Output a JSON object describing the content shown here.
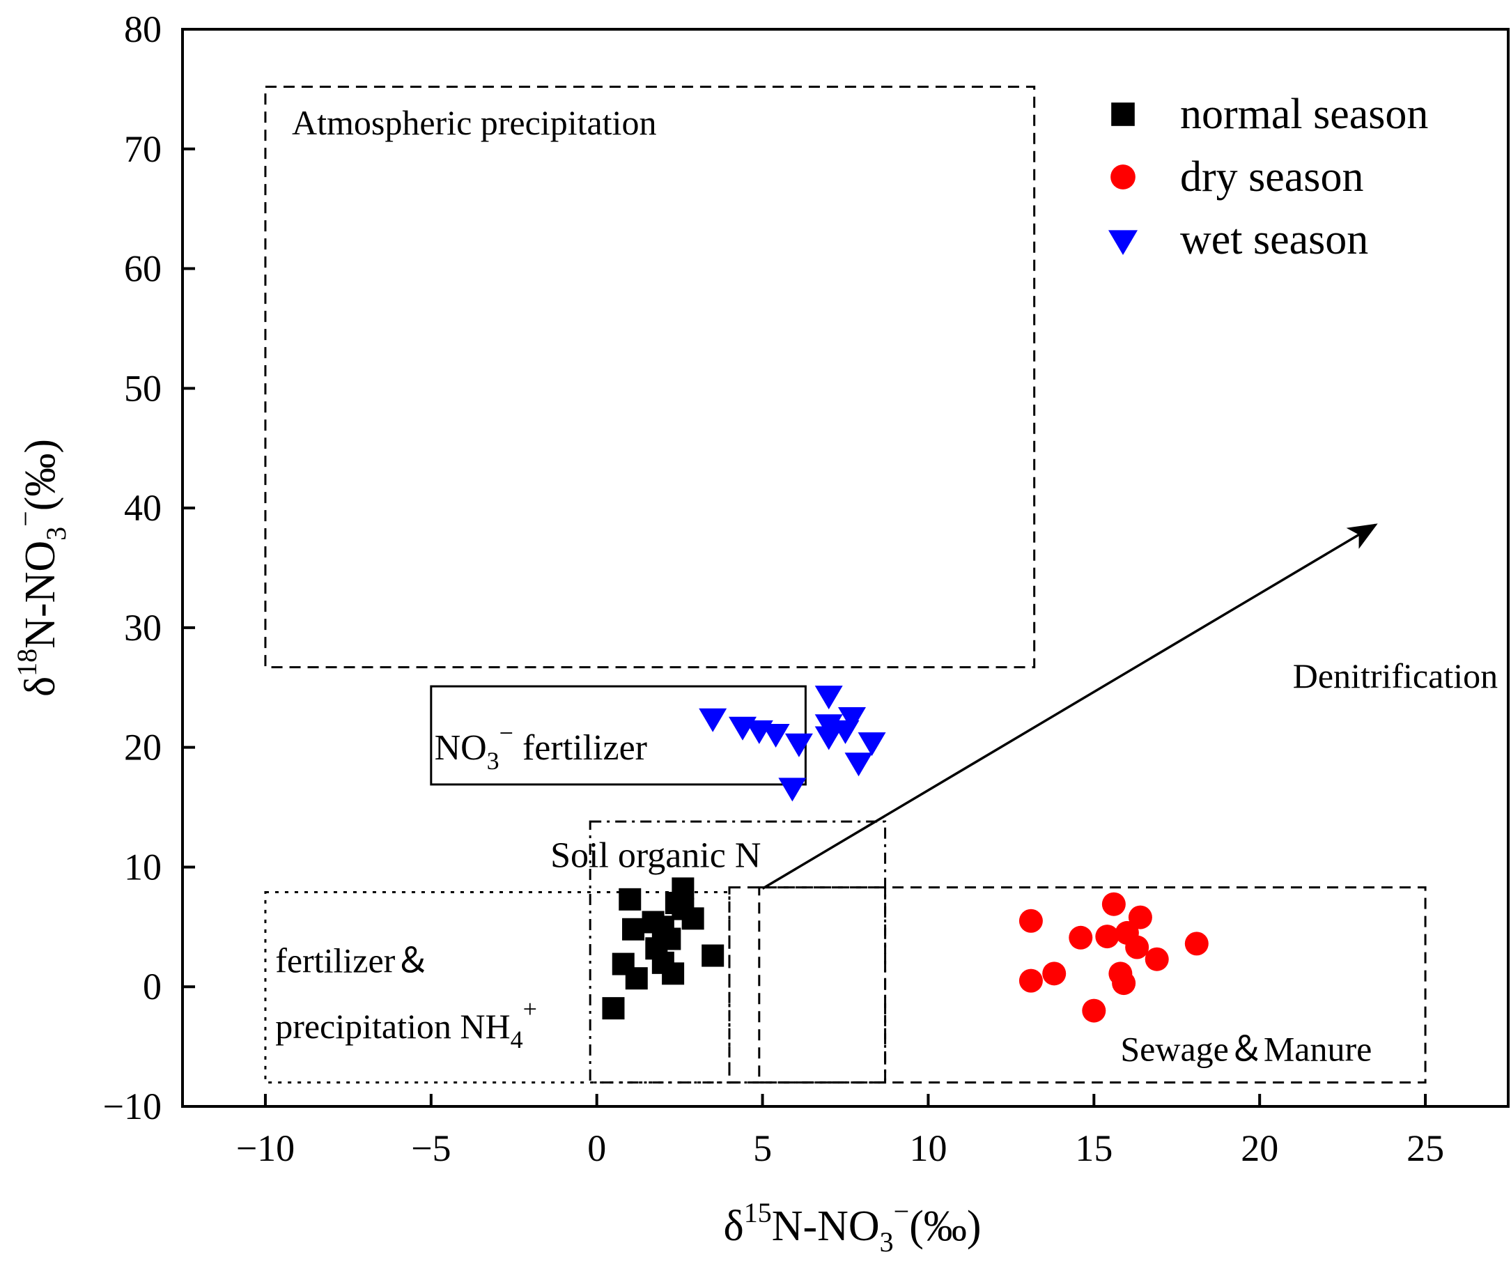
{
  "chart_data": {
    "type": "scatter",
    "xlabel": {
      "base": "δ",
      "sup": "15",
      "main": "N-NO",
      "sub": "3",
      "sup2": "−",
      "unit": "(‰)"
    },
    "ylabel": {
      "base": "δ",
      "sup": "18",
      "main": "N-NO",
      "sub": "3",
      "sup2": "−",
      "unit": "(‰)"
    },
    "xlim": [
      -12.5,
      27.5
    ],
    "ylim": [
      -10,
      80
    ],
    "xticks": [
      -10,
      -5,
      0,
      5,
      10,
      15,
      20,
      25
    ],
    "xtick_labels": [
      "−10",
      "−5",
      "0",
      "5",
      "10",
      "15",
      "20",
      "25"
    ],
    "yticks": [
      -10,
      0,
      10,
      20,
      30,
      40,
      50,
      60,
      70,
      80
    ],
    "ytick_labels": [
      "−10",
      "0",
      "10",
      "20",
      "30",
      "40",
      "50",
      "60",
      "70",
      "80"
    ],
    "legend_position": "top-right",
    "series": [
      {
        "name": "normal season",
        "marker": "square",
        "color": "#000000",
        "points": [
          [
            1.0,
            7.3
          ],
          [
            1.1,
            4.8
          ],
          [
            0.8,
            1.9
          ],
          [
            1.2,
            0.7
          ],
          [
            0.5,
            -1.8
          ],
          [
            1.7,
            5.4
          ],
          [
            2.0,
            5.0
          ],
          [
            2.2,
            4.0
          ],
          [
            1.8,
            3.2
          ],
          [
            2.0,
            2.0
          ],
          [
            2.3,
            1.1
          ],
          [
            2.6,
            8.2
          ],
          [
            2.6,
            6.5
          ],
          [
            2.9,
            5.7
          ],
          [
            3.5,
            2.6
          ],
          [
            2.4,
            7.0
          ]
        ]
      },
      {
        "name": "dry season",
        "marker": "circle",
        "color": "#ff0000",
        "points": [
          [
            13.1,
            5.5
          ],
          [
            13.1,
            0.5
          ],
          [
            13.8,
            1.1
          ],
          [
            14.6,
            4.1
          ],
          [
            15.0,
            -2.0
          ],
          [
            15.4,
            4.2
          ],
          [
            15.6,
            6.9
          ],
          [
            15.8,
            1.1
          ],
          [
            15.9,
            0.3
          ],
          [
            16.0,
            4.5
          ],
          [
            16.3,
            3.3
          ],
          [
            16.4,
            5.8
          ],
          [
            16.9,
            2.3
          ],
          [
            18.1,
            3.6
          ]
        ]
      },
      {
        "name": "wet season",
        "marker": "triangle-down",
        "color": "#0000ff",
        "points": [
          [
            3.5,
            22.5
          ],
          [
            4.4,
            21.8
          ],
          [
            4.9,
            21.5
          ],
          [
            5.4,
            21.2
          ],
          [
            6.1,
            20.4
          ],
          [
            5.9,
            16.7
          ],
          [
            7.0,
            24.4
          ],
          [
            7.0,
            22.0
          ],
          [
            7.0,
            21.0
          ],
          [
            7.5,
            21.5
          ],
          [
            7.7,
            22.6
          ],
          [
            7.9,
            18.8
          ],
          [
            8.3,
            20.5
          ]
        ]
      }
    ],
    "regions": [
      {
        "name": "region-atmospheric-precipitation",
        "label": "Atmospheric precipitation",
        "style": "dashed",
        "x": [
          -10,
          13.2
        ],
        "y": [
          26.7,
          75.2
        ]
      },
      {
        "name": "region-no3-fertilizer",
        "label_main": "NO",
        "label_sub": "3",
        "label_sup": "−",
        "label_tail": " fertilizer",
        "style": "solid",
        "x": [
          -5,
          6.3
        ],
        "y": [
          16.9,
          25.1
        ]
      },
      {
        "name": "region-soil-organic-n",
        "label": "Soil organic N",
        "style": "dashdot",
        "x": [
          -0.2,
          8.7
        ],
        "y": [
          -8,
          13.8
        ]
      },
      {
        "name": "region-fertilizer-precipitation",
        "label": "fertilizer＆",
        "label2": "precipitation NH",
        "label2_sub": "4",
        "label2_sup": "+",
        "style": "dotted",
        "x": [
          -10,
          4.0
        ],
        "y": [
          -8,
          7.9
        ]
      },
      {
        "name": "region-sewage-manure",
        "label": "Sewage＆Manure",
        "style": "dashed",
        "x": [
          4.0,
          25.0
        ],
        "y": [
          -8,
          8.3
        ]
      },
      {
        "name": "region-sewage-manure-inner",
        "style": "dashed",
        "x": [
          4.9,
          8.7
        ],
        "y": [
          -8,
          8.3
        ]
      }
    ],
    "annotations": [
      {
        "name": "denitrification-arrow",
        "label": "Denitrification",
        "from": [
          5.0,
          8.2
        ],
        "to": [
          23.5,
          38.6
        ],
        "label_at": [
          21.0,
          25.0
        ]
      }
    ]
  }
}
